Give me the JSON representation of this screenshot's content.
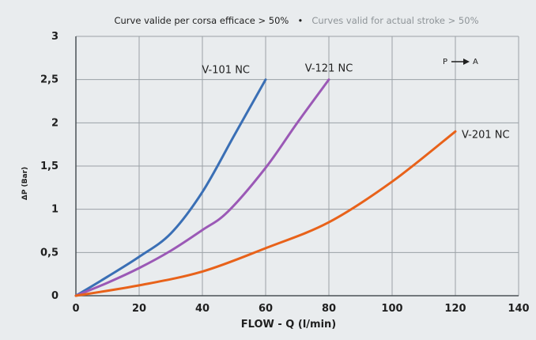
{
  "chart_data": {
    "type": "line",
    "title": "Curve valide per corsa efficace > 50%",
    "title_separator": "•",
    "subtitle": "Curves valid for actual stroke > 50%",
    "xlabel": "FLOW - Q (l/min)",
    "ylabel": "ΔP (Bar)",
    "xlim": [
      0,
      140
    ],
    "ylim": [
      0,
      3
    ],
    "x_ticks": [
      0,
      20,
      40,
      60,
      80,
      100,
      120,
      140
    ],
    "x_tick_labels": [
      "0",
      "20",
      "40",
      "60",
      "80",
      "100",
      "120",
      "140"
    ],
    "y_ticks": [
      0,
      0.5,
      1,
      1.5,
      2,
      2.5,
      3
    ],
    "y_tick_labels": [
      "0",
      "0,5",
      "1",
      "1,5",
      "2",
      "2,5",
      "3"
    ],
    "grid": true,
    "annotation": {
      "from": "P",
      "to": "A"
    },
    "series": [
      {
        "name": "V-101 NC",
        "color": "#3a6fb5",
        "x": [
          0,
          10,
          20,
          30,
          40,
          50,
          60
        ],
        "y": [
          0,
          0.22,
          0.45,
          0.72,
          1.2,
          1.85,
          2.5
        ]
      },
      {
        "name": "V-121 NC",
        "color": "#9b59b6",
        "x": [
          0,
          10,
          20,
          30,
          40,
          48,
          60,
          70,
          80
        ],
        "y": [
          0,
          0.15,
          0.32,
          0.52,
          0.76,
          0.97,
          1.48,
          2.0,
          2.5
        ]
      },
      {
        "name": "V-201 NC",
        "color": "#e8621a",
        "x": [
          0,
          20,
          40,
          60,
          80,
          100,
          120
        ],
        "y": [
          0,
          0.12,
          0.28,
          0.55,
          0.85,
          1.32,
          1.9
        ]
      }
    ]
  }
}
